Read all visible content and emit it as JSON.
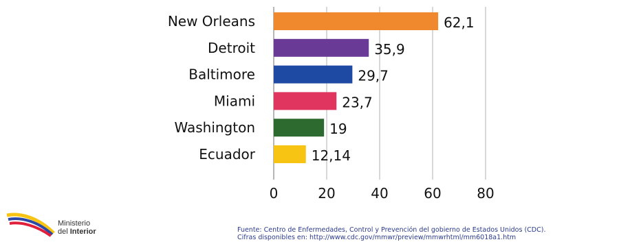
{
  "chart_data": {
    "type": "bar",
    "orientation": "horizontal",
    "categories": [
      "New Orleans",
      "Detroit",
      "Baltimore",
      "Miami",
      "Washington",
      "Ecuador"
    ],
    "values": [
      62.1,
      35.9,
      29.7,
      23.7,
      19,
      12.14
    ],
    "value_labels": [
      "62,1",
      "35,9",
      "29,7",
      "23,7",
      "19",
      "12,14"
    ],
    "colors": [
      "#f0892e",
      "#6a3a97",
      "#1f4aa3",
      "#e0355f",
      "#2d6a2f",
      "#f7c413"
    ],
    "xlim": [
      0,
      80
    ],
    "xticks": [
      "0",
      "20",
      "40",
      "60",
      "80"
    ],
    "grid": true,
    "title": "",
    "xlabel": "",
    "ylabel": ""
  },
  "logo": {
    "line1": "Ministerio",
    "line2_prefix": "del ",
    "line2_bold": "Interior"
  },
  "source": {
    "line1": "Fuente: Centro de Enfermedades, Control y Prevención del gobierno de Estados Unidos (CDC).",
    "line2": "Cifras disponibles en: http://www.cdc.gov/mmwr/preview/mmwrhtml/mm6018a1.htm"
  }
}
